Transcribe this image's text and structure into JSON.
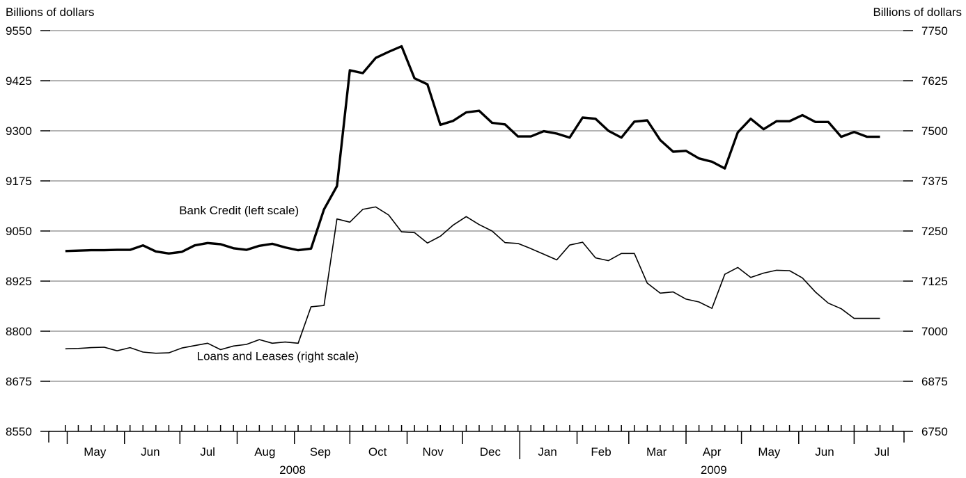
{
  "chart_data": {
    "type": "line",
    "left_axis": {
      "label": "Billions of dollars",
      "ylim": [
        8550,
        9550
      ],
      "ticks": [
        9550,
        9425,
        9300,
        9175,
        9050,
        8925,
        8800,
        8675,
        8550
      ]
    },
    "right_axis": {
      "label": "Billions of dollars",
      "ylim": [
        6750,
        7750
      ],
      "ticks": [
        7750,
        7625,
        7500,
        7375,
        7250,
        7125,
        7000,
        6875,
        6750
      ]
    },
    "x_axis": {
      "range": [
        "2008-04-21",
        "2009-07-28"
      ],
      "months": [
        {
          "label": "May",
          "date": "2008-05-16"
        },
        {
          "label": "Jun",
          "date": "2008-06-15"
        },
        {
          "label": "Jul",
          "date": "2008-07-16"
        },
        {
          "label": "Aug",
          "date": "2008-08-16"
        },
        {
          "label": "Sep",
          "date": "2008-09-15"
        },
        {
          "label": "Oct",
          "date": "2008-10-16"
        },
        {
          "label": "Nov",
          "date": "2008-11-15"
        },
        {
          "label": "Dec",
          "date": "2008-12-16"
        },
        {
          "label": "Jan",
          "date": "2009-01-16"
        },
        {
          "label": "Feb",
          "date": "2009-02-14"
        },
        {
          "label": "Mar",
          "date": "2009-03-16"
        },
        {
          "label": "Apr",
          "date": "2009-04-15"
        },
        {
          "label": "May",
          "date": "2009-05-16"
        },
        {
          "label": "Jun",
          "date": "2009-06-15"
        },
        {
          "label": "Jul",
          "date": "2009-07-16"
        }
      ],
      "month_starts": [
        "2008-05-01",
        "2008-06-01",
        "2008-07-01",
        "2008-08-01",
        "2008-09-01",
        "2008-10-01",
        "2008-11-01",
        "2008-12-01",
        "2009-01-01",
        "2009-02-01",
        "2009-03-01",
        "2009-04-01",
        "2009-05-01",
        "2009-06-01",
        "2009-07-01"
      ],
      "years": [
        {
          "label": "2008",
          "date": "2008-08-31"
        },
        {
          "label": "2009",
          "date": "2009-04-16"
        }
      ],
      "week_ticks": [
        "2008-04-30",
        "2008-05-07",
        "2008-05-14",
        "2008-05-21",
        "2008-05-28",
        "2008-06-04",
        "2008-06-11",
        "2008-06-18",
        "2008-06-25",
        "2008-07-02",
        "2008-07-09",
        "2008-07-16",
        "2008-07-23",
        "2008-07-30",
        "2008-08-06",
        "2008-08-13",
        "2008-08-20",
        "2008-08-27",
        "2008-09-03",
        "2008-09-10",
        "2008-09-17",
        "2008-09-24",
        "2008-10-01",
        "2008-10-08",
        "2008-10-15",
        "2008-10-22",
        "2008-10-29",
        "2008-11-05",
        "2008-11-12",
        "2008-11-19",
        "2008-11-26",
        "2008-12-03",
        "2008-12-10",
        "2008-12-17",
        "2008-12-24",
        "2008-12-31",
        "2009-01-07",
        "2009-01-14",
        "2009-01-21",
        "2009-01-28",
        "2009-02-04",
        "2009-02-11",
        "2009-02-18",
        "2009-02-25",
        "2009-03-04",
        "2009-03-11",
        "2009-03-18",
        "2009-03-25",
        "2009-04-01",
        "2009-04-08",
        "2009-04-15",
        "2009-04-22",
        "2009-04-29",
        "2009-05-06",
        "2009-05-13",
        "2009-05-20",
        "2009-05-27",
        "2009-06-03",
        "2009-06-10",
        "2009-06-17",
        "2009-06-24",
        "2009-07-01",
        "2009-07-08",
        "2009-07-15",
        "2009-07-22"
      ]
    },
    "series": [
      {
        "name": "Bank Credit (left scale)",
        "axis": "left",
        "color": "#000000",
        "dates": [
          "2008-04-30",
          "2008-05-07",
          "2008-05-14",
          "2008-05-21",
          "2008-05-28",
          "2008-06-04",
          "2008-06-11",
          "2008-06-18",
          "2008-06-25",
          "2008-07-02",
          "2008-07-09",
          "2008-07-16",
          "2008-07-23",
          "2008-07-30",
          "2008-08-06",
          "2008-08-13",
          "2008-08-20",
          "2008-08-27",
          "2008-09-03",
          "2008-09-10",
          "2008-09-17",
          "2008-09-24",
          "2008-10-01",
          "2008-10-08",
          "2008-10-15",
          "2008-10-22",
          "2008-10-29",
          "2008-11-05",
          "2008-11-12",
          "2008-11-19",
          "2008-11-26",
          "2008-12-03",
          "2008-12-10",
          "2008-12-17",
          "2008-12-24",
          "2008-12-31",
          "2009-01-07",
          "2009-01-14",
          "2009-01-21",
          "2009-01-28",
          "2009-02-04",
          "2009-02-11",
          "2009-02-18",
          "2009-02-25",
          "2009-03-04",
          "2009-03-11",
          "2009-03-18",
          "2009-03-25",
          "2009-04-01",
          "2009-04-08",
          "2009-04-15",
          "2009-04-22",
          "2009-04-29",
          "2009-05-06",
          "2009-05-13",
          "2009-05-20",
          "2009-05-27",
          "2009-06-03",
          "2009-06-10",
          "2009-06-17",
          "2009-06-24",
          "2009-07-01",
          "2009-07-08",
          "2009-07-15"
        ],
        "values": [
          9000,
          9001,
          9002,
          9002,
          9003,
          9003,
          9014,
          8999,
          8994,
          8998,
          9014,
          9020,
          9017,
          9007,
          9003,
          9013,
          9018,
          9009,
          9002,
          9006,
          9104,
          9162,
          9451,
          9444,
          9482,
          9497,
          9511,
          9431,
          9416,
          9315,
          9325,
          9346,
          9350,
          9320,
          9316,
          9286,
          9286,
          9299,
          9293,
          9283,
          9333,
          9330,
          9300,
          9283,
          9323,
          9326,
          9277,
          9248,
          9250,
          9231,
          9223,
          9206,
          9296,
          9330,
          9304,
          9324,
          9324,
          9339,
          9322,
          9322,
          9285,
          9297,
          9285,
          9285
        ]
      },
      {
        "name": "Loans and Leases (right scale)",
        "axis": "right",
        "color": "#000000",
        "dates": [
          "2008-04-30",
          "2008-05-07",
          "2008-05-14",
          "2008-05-21",
          "2008-05-28",
          "2008-06-04",
          "2008-06-11",
          "2008-06-18",
          "2008-06-25",
          "2008-07-02",
          "2008-07-09",
          "2008-07-16",
          "2008-07-23",
          "2008-07-30",
          "2008-08-06",
          "2008-08-13",
          "2008-08-20",
          "2008-08-27",
          "2008-09-03",
          "2008-09-10",
          "2008-09-17",
          "2008-09-24",
          "2008-10-01",
          "2008-10-08",
          "2008-10-15",
          "2008-10-22",
          "2008-10-29",
          "2008-11-05",
          "2008-11-12",
          "2008-11-19",
          "2008-11-26",
          "2008-12-03",
          "2008-12-10",
          "2008-12-17",
          "2008-12-24",
          "2008-12-31",
          "2009-01-07",
          "2009-01-14",
          "2009-01-21",
          "2009-01-28",
          "2009-02-04",
          "2009-02-11",
          "2009-02-18",
          "2009-02-25",
          "2009-03-04",
          "2009-03-11",
          "2009-03-18",
          "2009-03-25",
          "2009-04-01",
          "2009-04-08",
          "2009-04-15",
          "2009-04-22",
          "2009-04-29",
          "2009-05-06",
          "2009-05-13",
          "2009-05-20",
          "2009-05-27",
          "2009-06-03",
          "2009-06-10",
          "2009-06-17",
          "2009-06-24",
          "2009-07-01",
          "2009-07-08",
          "2009-07-15"
        ],
        "values": [
          6956,
          6957,
          6959,
          6960,
          6951,
          6959,
          6948,
          6945,
          6946,
          6958,
          6964,
          6970,
          6954,
          6963,
          6967,
          6979,
          6970,
          6973,
          6970,
          7061,
          7064,
          7280,
          7272,
          7304,
          7310,
          7290,
          7248,
          7246,
          7220,
          7237,
          7265,
          7286,
          7266,
          7250,
          7221,
          7219,
          7206,
          7192,
          7178,
          7215,
          7222,
          7183,
          7176,
          7194,
          7194,
          7120,
          7095,
          7098,
          7080,
          7073,
          7057,
          7142,
          7159,
          7134,
          7145,
          7152,
          7151,
          7133,
          7098,
          7070,
          7056,
          7032,
          7032,
          7032
        ]
      }
    ],
    "annotations": [
      {
        "text": "Bank Credit (left scale)",
        "date": "2008-08-02",
        "value_left": 9102
      },
      {
        "text": "Loans and Leases (right scale)",
        "date": "2008-08-23",
        "value_right": 6938
      }
    ]
  }
}
